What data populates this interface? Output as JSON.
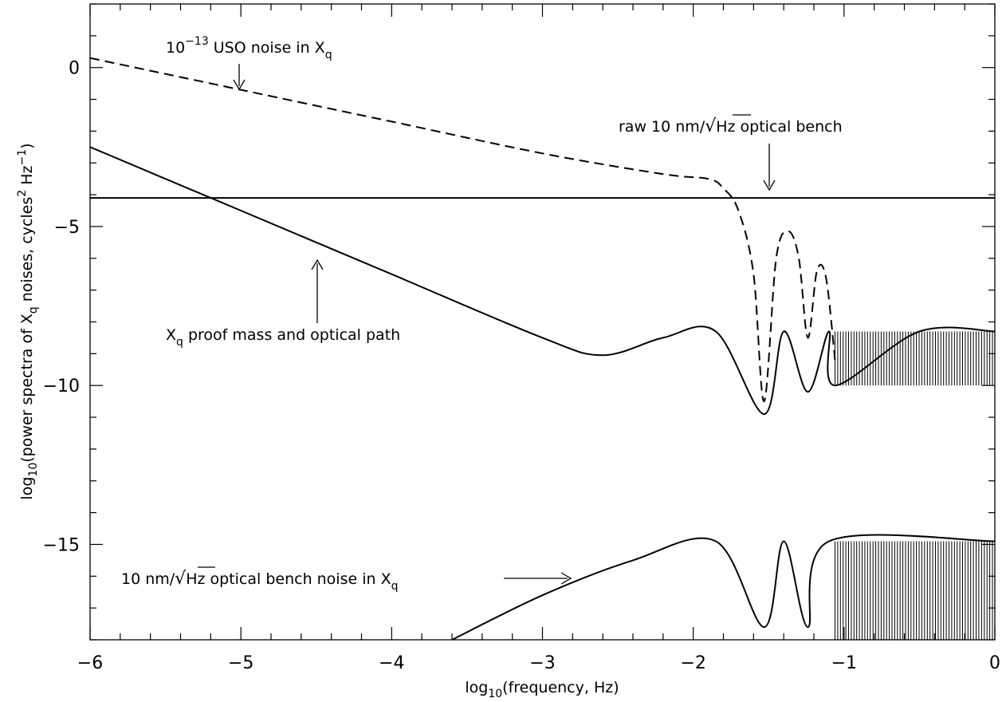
{
  "chart_data": {
    "type": "line",
    "title": "",
    "xlabel_main": "log",
    "xlabel_sub": "10",
    "xlabel_rest": "(frequency, Hz)",
    "ylabel_main": "log",
    "ylabel_sub1": "10",
    "ylabel_mid": "(power spectra of X",
    "ylabel_sub2": "q",
    "ylabel_mid2": " noises, cycles",
    "ylabel_sup1": "2",
    "ylabel_mid3": " Hz",
    "ylabel_sup2": "−1",
    "ylabel_end": ")",
    "xlim": [
      -6,
      0
    ],
    "ylim": [
      -18,
      2
    ],
    "x_ticks": [
      -6,
      -5,
      -4,
      -3,
      -2,
      -1,
      0
    ],
    "x_tick_labels": [
      "−6",
      "−5",
      "−4",
      "−3",
      "−2",
      "−1",
      "0"
    ],
    "y_ticks": [
      0,
      -5,
      -10,
      -15
    ],
    "y_tick_labels": [
      "0",
      "−5",
      "−10",
      "−15"
    ],
    "grid": false,
    "series": [
      {
        "style": "dashed",
        "x": [
          -6,
          -5,
          -4,
          -3,
          -2.2,
          -1.9,
          -1.8,
          -1.7,
          -1.6,
          -1.53,
          -1.45,
          -1.37,
          -1.3,
          -1.24,
          -1.18,
          -1.12,
          -1.06
        ],
        "y": [
          0.3,
          -0.7,
          -1.7,
          -2.7,
          -3.35,
          -3.5,
          -3.8,
          -4.5,
          -6.5,
          -10.5,
          -6.0,
          -5.15,
          -6.0,
          -8.5,
          -6.4,
          -6.6,
          -9.2
        ]
      },
      {
        "style": "solid",
        "x": [
          -6,
          -5,
          -4,
          -3,
          -2.6,
          -2.2,
          -1.85,
          -1.53,
          -1.4,
          -1.24,
          -1.1,
          -1.06,
          -0.5,
          0
        ],
        "y": [
          -2.5,
          -4.5,
          -6.5,
          -8.5,
          -9.05,
          -8.5,
          -8.3,
          -10.9,
          -8.3,
          -10.2,
          -8.3,
          -10.0,
          -8.3,
          -8.3
        ]
      },
      {
        "style": "solid",
        "x": [
          -6,
          0
        ],
        "y": [
          -4.1,
          -4.1
        ]
      },
      {
        "style": "solid",
        "x": [
          -3.6,
          -3,
          -2.4,
          -1.85,
          -1.53,
          -1.4,
          -1.24,
          -1.1,
          0
        ],
        "y": [
          -18,
          -16.6,
          -15.5,
          -14.9,
          -17.6,
          -14.9,
          -17.6,
          -14.9,
          -14.9
        ]
      }
    ],
    "annotations": {
      "uso_prefix": "10",
      "uso_sup": "−13",
      "uso_rest": " USO noise in X",
      "uso_sub": "q",
      "raw_text_a": "raw 10 nm/",
      "raw_sqrt": "√",
      "raw_text_b": "Hz optical bench",
      "pm_main": "X",
      "pm_sub": "q",
      "pm_rest": " proof mass and optical path",
      "ob_text_a": "10 nm/",
      "ob_sqrt": "√",
      "ob_text_b": "Hz optical bench noise in X",
      "ob_sub": "q"
    }
  }
}
